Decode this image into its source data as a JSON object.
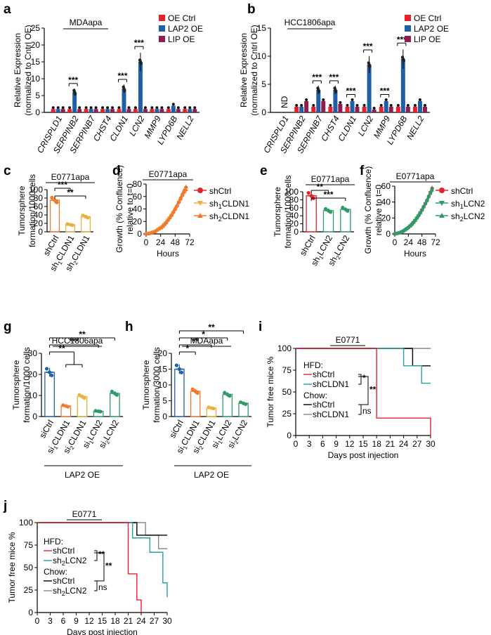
{
  "colors": {
    "red": "#e8202a",
    "blue": "#1f5fa8",
    "purple": "#8e1e52",
    "orange": "#f07a2a",
    "gold": "#e8b33a",
    "green": "#2f9a6a",
    "teal": "#28a0a0",
    "gray": "#888888",
    "black": "#000000"
  },
  "panels": {
    "a": {
      "letter": "a",
      "title": "MDAapa"
    },
    "b": {
      "letter": "b",
      "title": "HCC1806apa"
    },
    "c": {
      "letter": "c",
      "title": "E0771apa"
    },
    "d": {
      "letter": "d",
      "title": "E0771apa"
    },
    "e": {
      "letter": "e",
      "title": "E0771apa"
    },
    "f": {
      "letter": "f",
      "title": "E0771apa"
    },
    "g": {
      "letter": "g",
      "title": "HCC1806apa",
      "group_label": "LAP2 OE"
    },
    "h": {
      "letter": "h",
      "title": "MDAapa",
      "group_label": "LAP2 OE"
    },
    "i": {
      "letter": "i",
      "title": "E0771"
    },
    "j": {
      "letter": "j",
      "title": "E0771"
    }
  },
  "chart_data": [
    {
      "id": "a",
      "type": "bar",
      "title": "MDAapa",
      "ylabel": "Relative Expression (normalized to Cntrl OE)",
      "ylim": [
        0,
        25
      ],
      "yticks": [
        0,
        5,
        10,
        15,
        20,
        25
      ],
      "categories": [
        "CRISPLD1",
        "SERPINB2",
        "SERPINB7",
        "CHST4",
        "CLDN1",
        "LCN2",
        "MMP9",
        "LYPD6B",
        "NELL2"
      ],
      "highlight": [
        "CLDN1",
        "LCN2"
      ],
      "series": [
        {
          "name": "OE Ctrl",
          "color": "#e8202a",
          "values": [
            1,
            1,
            1,
            1,
            1,
            1,
            1,
            1,
            1
          ]
        },
        {
          "name": "LAP2 OE",
          "color": "#1f5fa8",
          "values": [
            1,
            6,
            1,
            1,
            7,
            15,
            1,
            2,
            1
          ]
        },
        {
          "name": "LIP OE",
          "color": "#8e1e52",
          "values": [
            1,
            1,
            1,
            1,
            1,
            1,
            1,
            1,
            1
          ]
        }
      ],
      "significance": [
        "",
        "***",
        "",
        "",
        "***",
        "***",
        "",
        "",
        ""
      ]
    },
    {
      "id": "b",
      "type": "bar",
      "title": "HCC1806apa",
      "ylabel": "Relative Expression (normalized to Cntrl OE)",
      "ylim": [
        0,
        15
      ],
      "yticks": [
        0,
        5,
        10,
        15
      ],
      "categories": [
        "CRISPLD1",
        "SERPINB2",
        "SERPINB7",
        "CHST4",
        "CLDN1",
        "LCN2",
        "MMP9",
        "LYPD6B",
        "NELL2"
      ],
      "highlight": [
        "CLDN1",
        "LCN2"
      ],
      "annotation": "ND",
      "series": [
        {
          "name": "OE Ctrl",
          "color": "#e8202a",
          "values": [
            0,
            1,
            1,
            1,
            1,
            1,
            1,
            1,
            1
          ]
        },
        {
          "name": "LAP2 OE",
          "color": "#1f5fa8",
          "values": [
            0,
            1,
            4,
            4,
            2,
            8.5,
            2,
            9.5,
            2
          ]
        },
        {
          "name": "LIP OE",
          "color": "#8e1e52",
          "values": [
            0,
            2,
            2,
            1.5,
            1,
            0.5,
            1,
            1,
            1
          ]
        }
      ],
      "significance": [
        "",
        "",
        "***",
        "***",
        "***",
        "***",
        "***",
        "***",
        ""
      ]
    },
    {
      "id": "c",
      "type": "bar",
      "title": "E0771apa",
      "ylabel": "Tumorsphere formation/1000cells",
      "ylim": [
        0,
        100
      ],
      "yticks": [
        0,
        20,
        40,
        60,
        80,
        100
      ],
      "categories": [
        "shCtrl",
        "sh1CLDN1",
        "sh2CLDN1"
      ],
      "tick_labels": [
        {
          "main": "shCtrl",
          "sub": ""
        },
        {
          "main": "sh",
          "sub": "1",
          "rest": "CLDN1"
        },
        {
          "main": "sh",
          "sub": "2",
          "rest": "CLDN1"
        }
      ],
      "colors": [
        "#f07a2a",
        "#e8b33a",
        "#e8b33a"
      ],
      "values": [
        75,
        17,
        36
      ],
      "significance": [
        {
          "from": 0,
          "to": 1,
          "label": "***"
        },
        {
          "from": 0,
          "to": 2,
          "label": "**"
        }
      ]
    },
    {
      "id": "d",
      "type": "line",
      "title": "E0771apa",
      "xlabel": "Hours",
      "ylabel": "Growth (% Confluence) relative to t=0",
      "xlim": [
        0,
        72
      ],
      "ylim": [
        0,
        80
      ],
      "xticks": [
        0,
        24,
        48,
        72
      ],
      "yticks": [
        0,
        20,
        40,
        60,
        80
      ],
      "x": [
        0,
        3,
        6,
        9,
        12,
        15,
        18,
        21,
        24,
        27,
        30,
        33,
        36,
        39,
        42,
        45,
        48,
        51,
        54,
        57,
        60,
        63,
        66
      ],
      "series": [
        {
          "name": "shCtrl",
          "color": "#e8202a",
          "marker": "circle",
          "values": [
            0,
            0.5,
            1,
            2,
            3,
            4,
            6,
            8,
            10,
            12,
            15,
            18,
            22,
            26,
            30,
            35,
            40,
            45,
            51,
            57,
            63,
            69,
            74
          ]
        },
        {
          "name": "sh1CLDN1",
          "color": "#e8b33a",
          "marker": "triangle-down",
          "values": [
            0,
            0.5,
            1,
            2,
            3,
            4,
            6,
            8,
            10,
            12,
            15,
            18,
            22,
            26,
            30,
            35,
            40,
            45,
            51,
            56,
            62,
            68,
            72
          ]
        },
        {
          "name": "sh2CLDN1",
          "color": "#f07a2a",
          "marker": "triangle-up",
          "values": [
            0,
            0.5,
            1,
            2,
            3,
            4,
            6,
            8,
            10,
            12,
            15,
            18,
            22,
            26,
            30,
            35,
            40,
            45,
            51,
            56,
            62,
            67,
            71
          ]
        }
      ]
    },
    {
      "id": "e",
      "type": "bar",
      "title": "E0771apa",
      "ylabel": "Tumorsphere formation/1000cells",
      "ylim": [
        0,
        100
      ],
      "yticks": [
        0,
        20,
        40,
        60,
        80,
        100
      ],
      "categories": [
        "shCtrl",
        "sh1LCN2",
        "sh2LCN2"
      ],
      "tick_labels": [
        {
          "main": "shCtrl",
          "sub": ""
        },
        {
          "main": "sh",
          "sub": "1",
          "rest": "LCN2"
        },
        {
          "main": "sh",
          "sub": "2",
          "rest": "LCN2"
        }
      ],
      "colors": [
        "#e8202a",
        "#2f9a6a",
        "#2f9a6a"
      ],
      "values": [
        90,
        53,
        56
      ],
      "significance": [
        {
          "from": 0,
          "to": 1,
          "label": "**"
        },
        {
          "from": 0,
          "to": 2,
          "label": "***"
        }
      ]
    },
    {
      "id": "f",
      "type": "line",
      "title": "E0771apa",
      "xlabel": "Hours",
      "ylabel": "Growth (% Confluence) relative to t=0",
      "xlim": [
        0,
        72
      ],
      "ylim": [
        0,
        60
      ],
      "xticks": [
        0,
        24,
        48,
        72
      ],
      "yticks": [
        0,
        20,
        40,
        60
      ],
      "x": [
        0,
        3,
        6,
        9,
        12,
        15,
        18,
        21,
        24,
        27,
        30,
        33,
        36,
        39,
        42,
        45,
        48,
        51,
        54,
        57,
        60,
        63,
        66
      ],
      "series": [
        {
          "name": "shCtrl",
          "color": "#e8202a",
          "marker": "circle",
          "values": [
            0,
            0.5,
            1,
            1.5,
            2.5,
            3.5,
            5,
            6.5,
            8,
            10,
            12,
            14.5,
            17,
            20,
            23,
            26.5,
            30,
            34,
            38,
            42,
            47,
            52,
            57
          ]
        },
        {
          "name": "sh1LCN2",
          "color": "#2f9a6a",
          "marker": "triangle-down",
          "values": [
            0,
            0.5,
            1,
            1.5,
            2.5,
            3.5,
            5,
            6.5,
            8,
            10,
            12,
            14.5,
            17,
            20,
            23,
            26.5,
            30,
            34,
            38,
            42,
            47,
            52,
            56
          ]
        },
        {
          "name": "sh2LCN2",
          "color": "#2f9a6a",
          "marker": "triangle-up",
          "values": [
            0,
            0.5,
            1,
            1.5,
            2.5,
            3.5,
            5,
            6.5,
            8,
            10,
            12,
            14.5,
            17,
            20,
            23,
            26.5,
            30,
            34,
            38,
            42,
            47,
            51,
            55
          ]
        }
      ]
    },
    {
      "id": "g",
      "type": "bar",
      "title": "HCC1806apa",
      "ylabel": "Tumorsphere formation/1000 cells",
      "ylim": [
        0,
        30
      ],
      "yticks": [
        0,
        10,
        20,
        30
      ],
      "categories": [
        "siCtrl",
        "si1CLDN1",
        "si2CLDN1",
        "si1LCN2",
        "si2LCN2"
      ],
      "tick_labels": [
        {
          "main": "siCtrl",
          "sub": ""
        },
        {
          "main": "si",
          "sub": "1",
          "rest": "CLDN1"
        },
        {
          "main": "si",
          "sub": "2",
          "rest": "CLDN1"
        },
        {
          "main": "si",
          "sub": "1",
          "rest": "LCN2"
        },
        {
          "main": "si",
          "sub": "2",
          "rest": "LCN2"
        }
      ],
      "group_label": "LAP2 OE",
      "colors": [
        "#1f5fa8",
        "#f07a2a",
        "#e8b33a",
        "#2f9a6a",
        "#2f9a6a"
      ],
      "values": [
        21,
        5,
        9.5,
        2.5,
        11
      ],
      "significance": [
        {
          "from": 0,
          "to": [
            1,
            2
          ],
          "label": "**"
        },
        {
          "from": 0,
          "to": 3,
          "label": "***"
        },
        {
          "from": 0,
          "to": 4,
          "label": "**"
        }
      ]
    },
    {
      "id": "h",
      "type": "bar",
      "title": "MDAapa",
      "ylabel": "Tumorsphere formation/3000 cells",
      "ylim": [
        0,
        20
      ],
      "yticks": [
        0,
        5,
        10,
        15,
        20
      ],
      "categories": [
        "siCtrl",
        "si1CLDN1",
        "si2CLDN1",
        "si1LCN2",
        "si2LCN2"
      ],
      "tick_labels": [
        {
          "main": "siCtrl",
          "sub": ""
        },
        {
          "main": "si",
          "sub": "1",
          "rest": "CLDN1"
        },
        {
          "main": "si",
          "sub": "2",
          "rest": "CLDN1"
        },
        {
          "main": "si",
          "sub": "1",
          "rest": "LCN2"
        },
        {
          "main": "si",
          "sub": "2",
          "rest": "LCN2"
        }
      ],
      "group_label": "LAP2 OE",
      "colors": [
        "#1f5fa8",
        "#f07a2a",
        "#e8b33a",
        "#2f9a6a",
        "#2f9a6a"
      ],
      "values": [
        15,
        8,
        2.7,
        7,
        4.2
      ],
      "significance": [
        {
          "from": 0,
          "to": 1,
          "label": "*"
        },
        {
          "from": 0,
          "to": 2,
          "label": "**"
        },
        {
          "from": 0,
          "to": 3,
          "label": "*"
        },
        {
          "from": 0,
          "to": 4,
          "label": "**"
        }
      ]
    },
    {
      "id": "i",
      "type": "line",
      "subtype": "survival",
      "title": "E0771",
      "xlabel": "Days post injection",
      "ylabel": "Tumor free mice %",
      "xlim": [
        0,
        30
      ],
      "ylim": [
        0,
        100
      ],
      "xticks": [
        0,
        3,
        6,
        9,
        12,
        15,
        18,
        21,
        24,
        27,
        30
      ],
      "yticks": [
        0,
        25,
        50,
        75,
        100
      ],
      "series": [
        {
          "name": "shCtrl",
          "group": "HFD",
          "color": "#e8202a",
          "steps": [
            [
              0,
              100
            ],
            [
              18,
              100
            ],
            [
              18,
              20
            ],
            [
              30,
              20
            ],
            [
              30,
              0
            ]
          ]
        },
        {
          "name": "shCLDN1",
          "group": "HFD",
          "color": "#28a0a0",
          "steps": [
            [
              0,
              100
            ],
            [
              24,
              100
            ],
            [
              24,
              80
            ],
            [
              28,
              80
            ],
            [
              28,
              60
            ],
            [
              30,
              60
            ]
          ]
        },
        {
          "name": "shCtrl",
          "group": "Chow",
          "color": "#000000",
          "steps": [
            [
              0,
              100
            ],
            [
              26,
              100
            ],
            [
              26,
              80
            ],
            [
              30,
              80
            ]
          ]
        },
        {
          "name": "shCLDN1",
          "group": "Chow",
          "color": "#888888",
          "steps": [
            [
              0,
              100
            ],
            [
              30,
              100
            ]
          ]
        }
      ],
      "legend_groups": [
        "HFD:",
        "Chow:"
      ],
      "significance": [
        "*",
        "**",
        "ns"
      ]
    },
    {
      "id": "j",
      "type": "line",
      "subtype": "survival",
      "title": "E0771",
      "xlabel": "Days post injection",
      "ylabel": "Tumor free mice %",
      "xlim": [
        0,
        30
      ],
      "ylim": [
        0,
        100
      ],
      "xticks": [
        0,
        3,
        6,
        9,
        12,
        15,
        18,
        21,
        24,
        27,
        30
      ],
      "yticks": [
        0,
        25,
        50,
        75,
        100
      ],
      "series": [
        {
          "name": "shCtrl",
          "group": "HFD",
          "color": "#e8202a",
          "steps": [
            [
              0,
              100
            ],
            [
              21,
              100
            ],
            [
              21,
              43
            ],
            [
              23,
              43
            ],
            [
              23,
              14
            ],
            [
              24,
              14
            ],
            [
              24,
              0
            ]
          ]
        },
        {
          "name": "sh2LCN2",
          "group": "HFD",
          "color": "#28a0a0",
          "steps": [
            [
              0,
              100
            ],
            [
              22,
              100
            ],
            [
              22,
              83
            ],
            [
              26,
              83
            ],
            [
              26,
              67
            ],
            [
              29,
              67
            ],
            [
              29,
              33
            ],
            [
              30,
              33
            ],
            [
              30,
              17
            ]
          ]
        },
        {
          "name": "shCtrl",
          "group": "Chow",
          "color": "#000000",
          "steps": [
            [
              0,
              100
            ],
            [
              23,
              100
            ],
            [
              23,
              86
            ],
            [
              30,
              86
            ]
          ]
        },
        {
          "name": "sh2LCN2",
          "group": "Chow",
          "color": "#888888",
          "steps": [
            [
              0,
              100
            ],
            [
              25,
              100
            ],
            [
              25,
              86
            ],
            [
              28,
              86
            ],
            [
              28,
              71
            ],
            [
              30,
              71
            ]
          ]
        }
      ],
      "legend_groups": [
        "HFD:",
        "Chow:"
      ],
      "significance": [
        "**",
        "**",
        "ns"
      ]
    }
  ]
}
